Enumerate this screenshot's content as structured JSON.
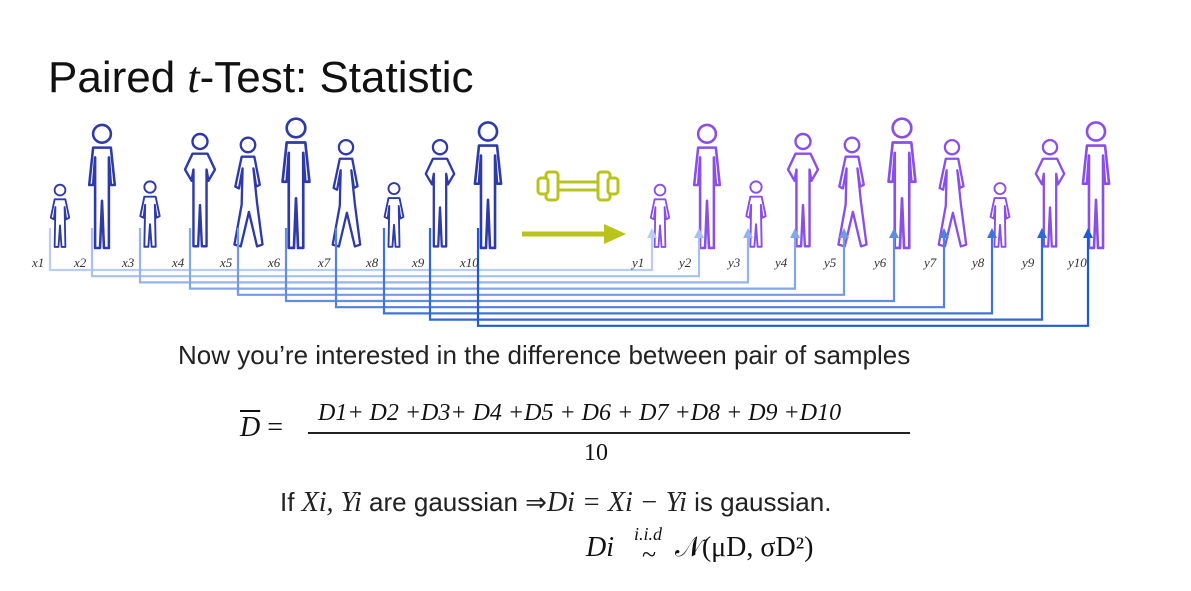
{
  "title": {
    "pre": "Paired ",
    "t": "t",
    "post": "-Test: Statistic"
  },
  "x_labels": [
    "x1",
    "x2",
    "x3",
    "x4",
    "x5",
    "x6",
    "x7",
    "x8",
    "x9",
    "x10"
  ],
  "y_labels": [
    "y1",
    "y2",
    "y3",
    "y4",
    "y5",
    "y6",
    "y7",
    "y8",
    "y9",
    "y10"
  ],
  "caption": "Now you’re interested in the difference between pair of samples",
  "formula": {
    "lhs": "D",
    "eq": "=",
    "numerator": "D1+ D2 +D3+ D4 +D5 + D6 + D7 +D8 + D9 +D10",
    "denominator": "10"
  },
  "gaussian": {
    "pre": "If ",
    "vars": "Xi, Yi",
    "mid": " are gaussian ⇒",
    "expr": "Di = Xi − Yi",
    "post": " is gaussian."
  },
  "distribution": {
    "lhs": "Di",
    "iid": "i.i.d",
    "tilde": "~",
    "rhs": "𝒩(μD, σD²)"
  },
  "colors": {
    "group_a": "#2f3aa8",
    "group_b": "#8a4fe8",
    "link_light": "#b9cdf2",
    "link_dark": "#1e5ad6",
    "transform_arrow": "#b8c41c"
  }
}
